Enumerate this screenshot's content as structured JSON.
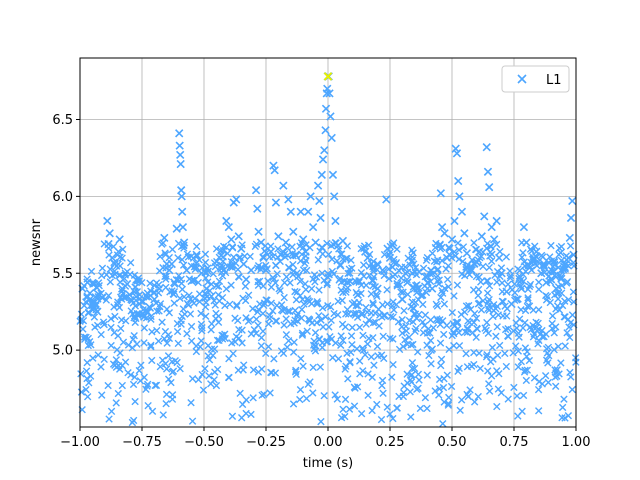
{
  "chart_data": {
    "type": "scatter",
    "xlabel": "time (s)",
    "ylabel": "newsnr",
    "xlim": [
      -1.0,
      1.0
    ],
    "ylim": [
      4.5,
      6.9
    ],
    "xticks": [
      -1.0,
      -0.75,
      -0.5,
      -0.25,
      0.0,
      0.25,
      0.5,
      0.75,
      1.0
    ],
    "xtick_labels": [
      "−1.00",
      "−0.75",
      "−0.50",
      "−0.25",
      "0.00",
      "0.25",
      "0.50",
      "0.75",
      "1.00"
    ],
    "yticks": [
      5.0,
      5.5,
      6.0,
      6.5
    ],
    "ytick_labels": [
      "5.0",
      "5.5",
      "6.0",
      "6.5"
    ],
    "grid": true,
    "legend_position": "top-right",
    "marker": "x",
    "series": [
      {
        "name": "L1",
        "color": "#4da6ff",
        "points": [
          [
            -0.99,
            5.4
          ],
          [
            -0.97,
            5.44
          ],
          [
            -0.96,
            5.37
          ],
          [
            -0.95,
            5.3
          ],
          [
            -0.93,
            5.25
          ],
          [
            -0.91,
            5.34
          ],
          [
            -0.89,
            5.84
          ],
          [
            -0.885,
            5.69
          ],
          [
            -0.88,
            5.76
          ],
          [
            -0.87,
            5.6
          ],
          [
            -0.86,
            5.56
          ],
          [
            -0.84,
            5.72
          ],
          [
            -0.83,
            5.4
          ],
          [
            -0.81,
            5.43
          ],
          [
            -0.8,
            5.36
          ],
          [
            -0.78,
            5.38
          ],
          [
            -0.76,
            5.3
          ],
          [
            -0.74,
            5.22
          ],
          [
            -0.72,
            5.28
          ],
          [
            -0.7,
            5.33
          ],
          [
            -0.68,
            5.4
          ],
          [
            -0.66,
            5.73
          ],
          [
            -0.65,
            5.56
          ],
          [
            -0.64,
            5.52
          ],
          [
            -0.63,
            5.56
          ],
          [
            -0.62,
            5.44
          ],
          [
            -0.61,
            5.79
          ],
          [
            -0.6,
            6.41
          ],
          [
            -0.598,
            6.33
          ],
          [
            -0.596,
            6.27
          ],
          [
            -0.594,
            6.21
          ],
          [
            -0.592,
            6.04
          ],
          [
            -0.59,
            6.0
          ],
          [
            -0.588,
            5.9
          ],
          [
            -0.585,
            5.8
          ],
          [
            -0.58,
            5.7
          ],
          [
            -0.57,
            5.52
          ],
          [
            -0.55,
            5.45
          ],
          [
            -0.53,
            5.62
          ],
          [
            -0.51,
            5.5
          ],
          [
            -0.49,
            5.4
          ],
          [
            -0.47,
            5.35
          ],
          [
            -0.45,
            5.42
          ],
          [
            -0.43,
            5.53
          ],
          [
            -0.41,
            5.84
          ],
          [
            -0.4,
            5.8
          ],
          [
            -0.39,
            5.72
          ],
          [
            -0.38,
            5.96
          ],
          [
            -0.37,
            5.98
          ],
          [
            -0.36,
            5.74
          ],
          [
            -0.35,
            5.66
          ],
          [
            -0.34,
            5.56
          ],
          [
            -0.33,
            5.46
          ],
          [
            -0.31,
            5.52
          ],
          [
            -0.29,
            6.04
          ],
          [
            -0.285,
            5.92
          ],
          [
            -0.28,
            5.77
          ],
          [
            -0.27,
            5.7
          ],
          [
            -0.26,
            5.6
          ],
          [
            -0.25,
            5.52
          ],
          [
            -0.23,
            5.64
          ],
          [
            -0.22,
            6.2
          ],
          [
            -0.215,
            6.17
          ],
          [
            -0.21,
            5.96
          ],
          [
            -0.2,
            5.74
          ],
          [
            -0.19,
            5.62
          ],
          [
            -0.18,
            6.07
          ],
          [
            -0.17,
            5.7
          ],
          [
            -0.16,
            5.98
          ],
          [
            -0.15,
            5.9
          ],
          [
            -0.14,
            5.77
          ],
          [
            -0.13,
            5.62
          ],
          [
            -0.12,
            5.48
          ],
          [
            -0.11,
            5.9
          ],
          [
            -0.1,
            5.72
          ],
          [
            -0.09,
            5.64
          ],
          [
            -0.08,
            5.9
          ],
          [
            -0.07,
            6.0
          ],
          [
            -0.06,
            5.8
          ],
          [
            -0.05,
            5.7
          ],
          [
            -0.04,
            6.07
          ],
          [
            -0.035,
            5.97
          ],
          [
            -0.03,
            5.86
          ],
          [
            -0.025,
            6.14
          ],
          [
            -0.02,
            6.24
          ],
          [
            -0.015,
            6.3
          ],
          [
            -0.01,
            6.43
          ],
          [
            -0.008,
            6.57
          ],
          [
            -0.005,
            6.67
          ],
          [
            -0.003,
            6.7
          ],
          [
            -0.001,
            6.78
          ],
          [
            0.003,
            6.78
          ],
          [
            0.006,
            6.67
          ],
          [
            0.01,
            6.52
          ],
          [
            0.015,
            6.38
          ],
          [
            0.02,
            6.14
          ],
          [
            0.025,
            6.0
          ],
          [
            0.03,
            5.84
          ],
          [
            0.04,
            5.68
          ],
          [
            0.05,
            5.55
          ],
          [
            0.06,
            5.71
          ],
          [
            0.08,
            5.44
          ],
          [
            0.1,
            5.3
          ],
          [
            0.12,
            5.36
          ],
          [
            0.15,
            5.64
          ],
          [
            0.16,
            5.6
          ],
          [
            0.18,
            5.45
          ],
          [
            0.2,
            5.4
          ],
          [
            0.22,
            5.52
          ],
          [
            0.235,
            5.98
          ],
          [
            0.24,
            5.66
          ],
          [
            0.25,
            5.6
          ],
          [
            0.26,
            5.54
          ],
          [
            0.28,
            5.43
          ],
          [
            0.3,
            5.33
          ],
          [
            0.32,
            5.44
          ],
          [
            0.34,
            5.5
          ],
          [
            0.36,
            5.4
          ],
          [
            0.38,
            5.36
          ],
          [
            0.4,
            5.48
          ],
          [
            0.42,
            5.4
          ],
          [
            0.44,
            5.52
          ],
          [
            0.45,
            5.68
          ],
          [
            0.455,
            6.02
          ],
          [
            0.46,
            5.8
          ],
          [
            0.47,
            5.76
          ],
          [
            0.48,
            5.6
          ],
          [
            0.49,
            5.66
          ],
          [
            0.5,
            5.72
          ],
          [
            0.51,
            5.84
          ],
          [
            0.515,
            6.31
          ],
          [
            0.52,
            6.28
          ],
          [
            0.525,
            6.1
          ],
          [
            0.53,
            6.0
          ],
          [
            0.54,
            5.9
          ],
          [
            0.55,
            5.76
          ],
          [
            0.56,
            5.63
          ],
          [
            0.58,
            5.52
          ],
          [
            0.6,
            5.57
          ],
          [
            0.61,
            5.64
          ],
          [
            0.62,
            5.74
          ],
          [
            0.63,
            5.87
          ],
          [
            0.64,
            6.32
          ],
          [
            0.645,
            6.16
          ],
          [
            0.65,
            6.06
          ],
          [
            0.66,
            5.8
          ],
          [
            0.67,
            5.72
          ],
          [
            0.68,
            5.84
          ],
          [
            0.69,
            5.6
          ],
          [
            0.7,
            5.5
          ],
          [
            0.72,
            5.38
          ],
          [
            0.74,
            5.3
          ],
          [
            0.76,
            5.33
          ],
          [
            0.78,
            5.4
          ],
          [
            0.79,
            5.8
          ],
          [
            0.8,
            5.7
          ],
          [
            0.81,
            5.55
          ],
          [
            0.83,
            5.6
          ],
          [
            0.84,
            5.64
          ],
          [
            0.86,
            5.5
          ],
          [
            0.88,
            5.44
          ],
          [
            0.89,
            5.57
          ],
          [
            0.9,
            5.46
          ],
          [
            0.92,
            5.4
          ],
          [
            0.94,
            5.52
          ],
          [
            0.96,
            5.56
          ],
          [
            0.97,
            5.6
          ],
          [
            0.975,
            5.73
          ],
          [
            0.98,
            5.86
          ],
          [
            0.985,
            5.97
          ],
          [
            0.99,
            5.62
          ]
        ]
      }
    ],
    "highlight": {
      "x": 0.0,
      "y": 6.78,
      "color": "#e8f000"
    }
  }
}
